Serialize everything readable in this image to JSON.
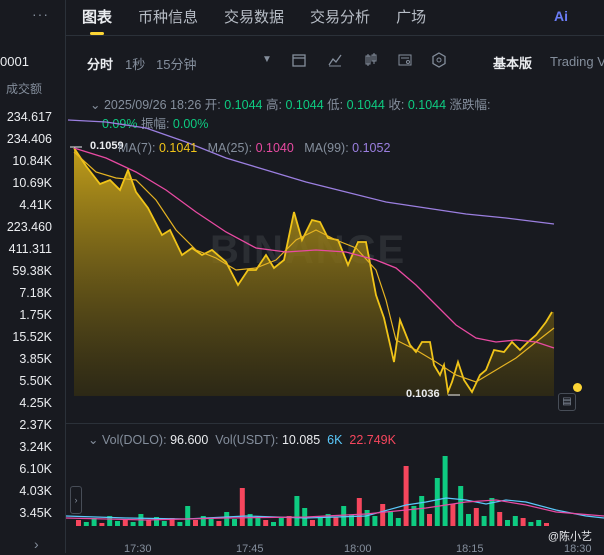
{
  "left_panel": {
    "dots": "···",
    "top_value": "0001",
    "column_header": "成交额",
    "volumes": [
      "234.617",
      "234.406",
      "10.84K",
      "10.69K",
      "4.41K",
      "223.460",
      "411.311",
      "59.38K",
      "7.18K",
      "1.75K",
      "15.52K",
      "3.85K",
      "5.50K",
      "4.25K",
      "2.37K",
      "3.24K",
      "6.10K",
      "4.03K",
      "3.45K"
    ]
  },
  "tabs": [
    {
      "label": "图表",
      "active": true
    },
    {
      "label": "币种信息",
      "active": false
    },
    {
      "label": "交易数据",
      "active": false
    },
    {
      "label": "交易分析",
      "active": false
    },
    {
      "label": "广场",
      "active": false
    }
  ],
  "ai_label": "Ai",
  "toolbar": {
    "timeline": "分时",
    "one_sec": "1秒",
    "fifteen_min": "15分钟",
    "basic": "基本版",
    "tradingview": "Trading V"
  },
  "ohlc": {
    "datetime": "2025/09/26 18:26",
    "open_label": "开:",
    "open": "0.1044",
    "high_label": "高:",
    "high": "0.1044",
    "low_label": "低:",
    "low": "0.1044",
    "close_label": "收:",
    "close": "0.1044",
    "change_label": "涨跌幅:",
    "change": "0.09%",
    "amp_label": "振幅:",
    "amp": "0.00%"
  },
  "ma": {
    "ma7_label": "MA(7):",
    "ma7": "0.1041",
    "ma25_label": "MA(25):",
    "ma25": "0.1040",
    "ma99_label": "MA(99):",
    "ma99": "0.1052"
  },
  "chart_labels": {
    "high_mark": "0.1059",
    "low_mark": "0.1036"
  },
  "vol": {
    "label1": "Vol(DOLO):",
    "val1": "96.600",
    "label2": "Vol(USDT):",
    "val2": "10.085",
    "v3": "6K",
    "v4": "22.749K"
  },
  "xaxis": [
    "17:30",
    "17:45",
    "18:00",
    "18:15",
    "18:30"
  ],
  "watermark": "BINANCE",
  "author": "@陈小艺",
  "colors": {
    "up": "#0ecb81",
    "down": "#f6465d",
    "accent": "#fcd535",
    "ma25": "#e84aa2",
    "ma99": "#9b7fe0"
  }
}
